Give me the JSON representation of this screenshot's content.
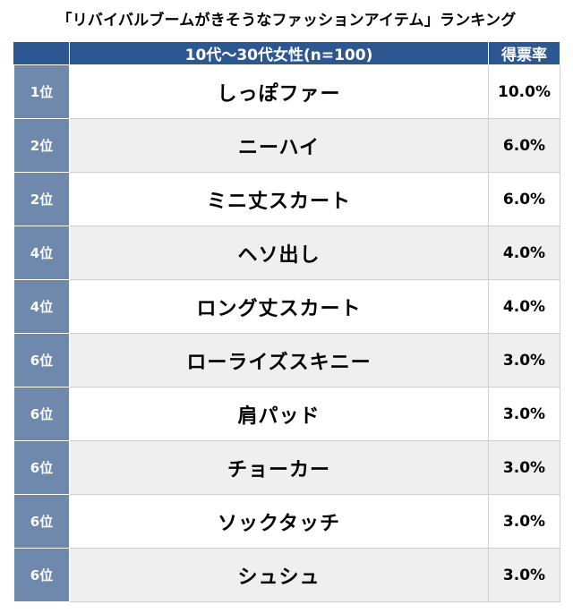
{
  "chart_data": {
    "type": "table",
    "title": "「リバイバルブームがきそうなファッションアイテム」ランキング",
    "columns": [
      "",
      "10代〜30代女性(n=100)",
      "得票率"
    ],
    "rows": [
      {
        "rank": "1位",
        "item": "しっぽファー",
        "value": "10.0%"
      },
      {
        "rank": "2位",
        "item": "ニーハイ",
        "value": "6.0%"
      },
      {
        "rank": "2位",
        "item": "ミニ丈スカート",
        "value": "6.0%"
      },
      {
        "rank": "4位",
        "item": "ヘソ出し",
        "value": "4.0%"
      },
      {
        "rank": "4位",
        "item": "ロング丈スカート",
        "value": "4.0%"
      },
      {
        "rank": "6位",
        "item": "ローライズスキニー",
        "value": "3.0%"
      },
      {
        "rank": "6位",
        "item": "肩パッド",
        "value": "3.0%"
      },
      {
        "rank": "6位",
        "item": "チョーカー",
        "value": "3.0%"
      },
      {
        "rank": "6位",
        "item": "ソックタッチ",
        "value": "3.0%"
      },
      {
        "rank": "6位",
        "item": "シュシュ",
        "value": "3.0%"
      }
    ],
    "colors": {
      "header_bg": "#2d5791",
      "rank_bg": "#6f89ad",
      "row_alt_bg": "#efefef"
    }
  }
}
